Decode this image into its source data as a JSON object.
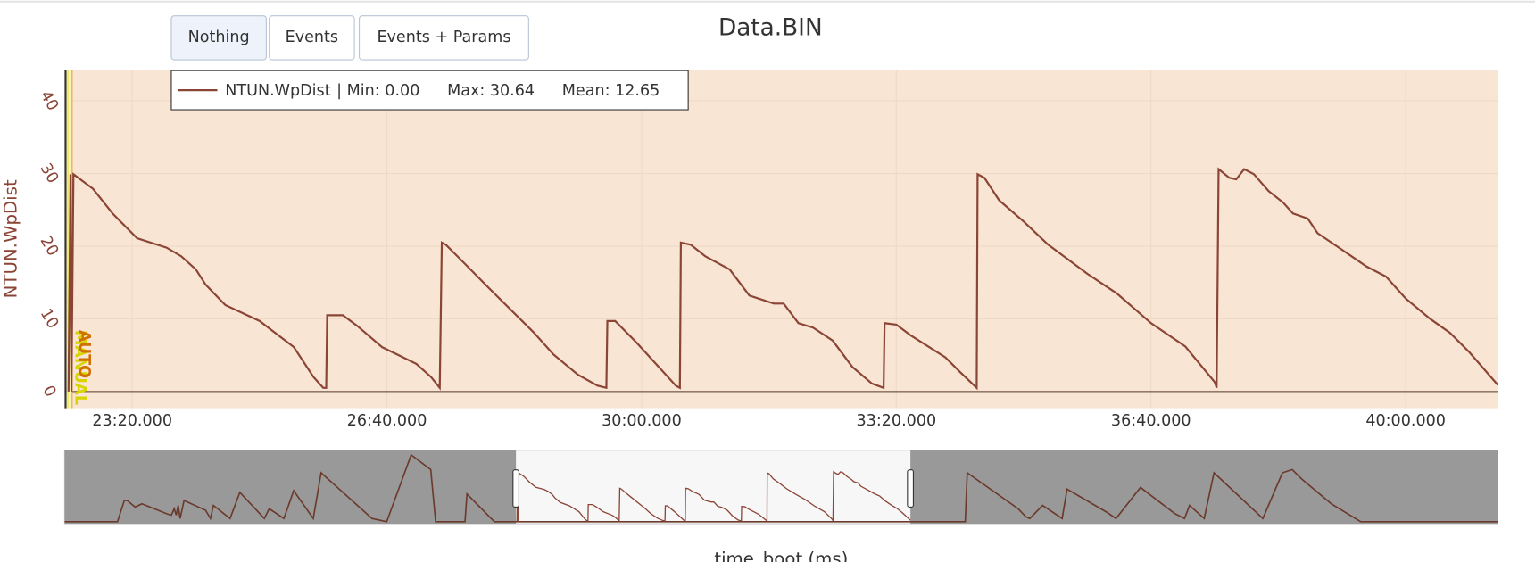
{
  "buttons": [
    "Nothing",
    "Events",
    "Events + Params"
  ],
  "chart_data": {
    "type": "line",
    "title": "Data.BIN",
    "y_label": "NTUN.WpDist",
    "x_label": "time_boot (ms)",
    "xlim": [
      1346900,
      2472300
    ],
    "ylim": [
      -2.3,
      44.3
    ],
    "yticks": [
      0,
      10,
      20,
      30,
      40
    ],
    "xticks": [
      {
        "value": 1400000,
        "label": "23:20.000"
      },
      {
        "value": 1600000,
        "label": "26:40.000"
      },
      {
        "value": 1800000,
        "label": "30:00.000"
      },
      {
        "value": 2000000,
        "label": "33:20.000"
      },
      {
        "value": 2200000,
        "label": "36:40.000"
      },
      {
        "value": 2400000,
        "label": "40:00.000"
      }
    ],
    "grid": true,
    "legend_position": "top-left",
    "legend_stats": [
      "| Min: 0.00",
      "Max: 30.64",
      "Mean: 12.65"
    ],
    "mode_band": {
      "x": [
        1348500,
        1353100
      ],
      "color": "#fbf3b0"
    },
    "modes": [
      {
        "name": "MANUAL",
        "x": 1349500,
        "color": "#d8d400"
      },
      {
        "name": "AUTO",
        "x": 1352800,
        "color": "#d07000"
      }
    ],
    "series": [
      {
        "name": "NTUN.WpDist",
        "color": "#8b4536",
        "x": [
          1350000,
          1351500,
          1352300,
          1353800,
          1357700,
          1369200,
          1384600,
          1403800,
          1426900,
          1438500,
          1450000,
          1457700,
          1473100,
          1500000,
          1526900,
          1542300,
          1550000,
          1552300,
          1553100,
          1565400,
          1576900,
          1596200,
          1611500,
          1623100,
          1634600,
          1641500,
          1643100,
          1646200,
          1657700,
          1680800,
          1715400,
          1730800,
          1750000,
          1765400,
          1772300,
          1773100,
          1779200,
          1796200,
          1826900,
          1830000,
          1830800,
          1838500,
          1850000,
          1869200,
          1884600,
          1903800,
          1911500,
          1923100,
          1934600,
          1950000,
          1965400,
          1980800,
          1990000,
          1990800,
          2000000,
          2011500,
          2038500,
          2050000,
          2063100,
          2063800,
          2069200,
          2080800,
          2100000,
          2119200,
          2150000,
          2173100,
          2200000,
          2226900,
          2250000,
          2251500,
          2253100,
          2261500,
          2266900,
          2273100,
          2280800,
          2292300,
          2303800,
          2311500,
          2323100,
          2330800,
          2350000,
          2369200,
          2384600,
          2400000,
          2419200,
          2434600,
          2450000,
          2472300
        ],
        "values": [
          0,
          29.9,
          0,
          29.9,
          29.4,
          27.9,
          24.5,
          21.1,
          19.8,
          18.6,
          16.8,
          14.7,
          11.9,
          9.7,
          6.1,
          2.0,
          0.5,
          0.5,
          10.5,
          10.5,
          9.0,
          6.1,
          4.8,
          3.8,
          2.0,
          0.5,
          20.5,
          20.2,
          18.2,
          14.1,
          8.1,
          5.1,
          2.3,
          0.8,
          0.5,
          9.7,
          9.7,
          6.7,
          0.8,
          0.5,
          20.5,
          20.2,
          18.6,
          16.8,
          13.2,
          12.1,
          12.1,
          9.4,
          8.8,
          7.0,
          3.4,
          1.1,
          0.5,
          9.4,
          9.2,
          7.7,
          4.7,
          2.7,
          0.5,
          29.9,
          29.4,
          26.3,
          23.4,
          20.2,
          16.2,
          13.5,
          9.4,
          6.2,
          1.3,
          0.5,
          30.6,
          29.4,
          29.2,
          30.6,
          29.9,
          27.6,
          26.0,
          24.5,
          23.8,
          21.8,
          19.5,
          17.2,
          15.8,
          12.8,
          10.0,
          8.1,
          5.4,
          0.9
        ]
      }
    ],
    "overview": {
      "xlim": [
        59300,
        4148100
      ],
      "ylim": [
        -1.2,
        43.8
      ],
      "x": [
        59300,
        210100,
        229700,
        238100,
        260400,
        279900,
        349800,
        363700,
        372100,
        377700,
        383300,
        388900,
        400000,
        461500,
        475500,
        483800,
        531300,
        559200,
        629100,
        643000,
        684900,
        712900,
        768700,
        791100,
        936300,
        978200,
        1048000,
        1103900,
        1117800,
        1201600,
        1207200,
        1285400,
        1327300,
        2472500,
        2628900,
        2634400,
        2779700,
        2802000,
        2813200,
        2849500,
        2905400,
        2919300,
        3031100,
        3059000,
        3128800,
        3226600,
        3254500,
        3268500,
        3310400,
        3338300,
        3477900,
        3533800,
        3561700,
        3589700,
        3673400,
        3757200,
        4148100
      ],
      "values": [
        0,
        0,
        13,
        13,
        9,
        11,
        5,
        4,
        8,
        4,
        10,
        2,
        13,
        7,
        2,
        10,
        2,
        18,
        2,
        8,
        2,
        19,
        2,
        30,
        2,
        0,
        41,
        32,
        0,
        0,
        17,
        0,
        0,
        0,
        0,
        30,
        8,
        3,
        2,
        10,
        2,
        20,
        6,
        2,
        21,
        5,
        2,
        10,
        2,
        30,
        2,
        30,
        32,
        26,
        11,
        0,
        0
      ]
    }
  }
}
